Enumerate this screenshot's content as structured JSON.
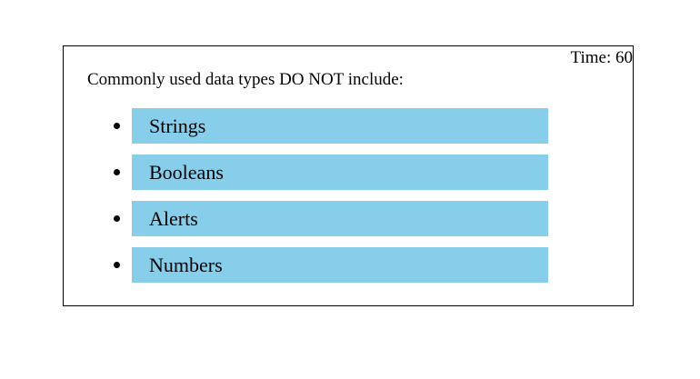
{
  "timer": {
    "label": "Time: 60"
  },
  "question": {
    "text": "Commonly used data types DO NOT include:"
  },
  "choices": [
    {
      "label": "Strings"
    },
    {
      "label": "Booleans"
    },
    {
      "label": "Alerts"
    },
    {
      "label": "Numbers"
    }
  ],
  "colors": {
    "choice_background": "#87ceeb",
    "border": "#000000",
    "text": "#000000"
  }
}
